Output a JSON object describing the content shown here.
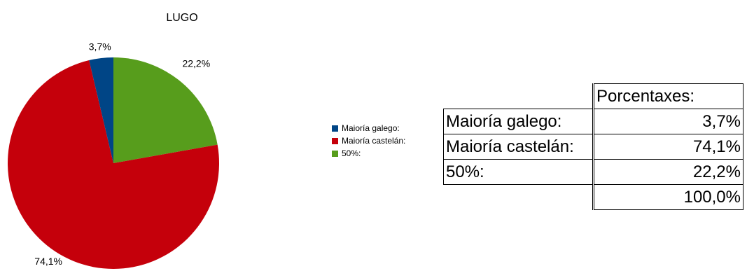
{
  "chart_data": {
    "type": "pie",
    "title": "LUGO",
    "categories": [
      "Maioría galego:",
      "Maioría castelán:",
      "50%:"
    ],
    "values": [
      3.7,
      74.1,
      22.2
    ],
    "labels": [
      "3,7%",
      "74,1%",
      "22,2%"
    ],
    "colors": [
      "#004586",
      "#c5000b",
      "#579d1c"
    ],
    "legend": "right"
  },
  "legend": {
    "items": [
      {
        "label": "Maioría galego:",
        "color": "#004586"
      },
      {
        "label": "Maioría castelán:",
        "color": "#c5000b"
      },
      {
        "label": "50%:",
        "color": "#579d1c"
      }
    ]
  },
  "table": {
    "header": "Porcentaxes:",
    "rows": [
      {
        "label": "Maioría galego:",
        "value": "3,7%"
      },
      {
        "label": "Maioría castelán:",
        "value": "74,1%"
      },
      {
        "label": "50%:",
        "value": "22,2%"
      }
    ],
    "total": "100,0%"
  }
}
